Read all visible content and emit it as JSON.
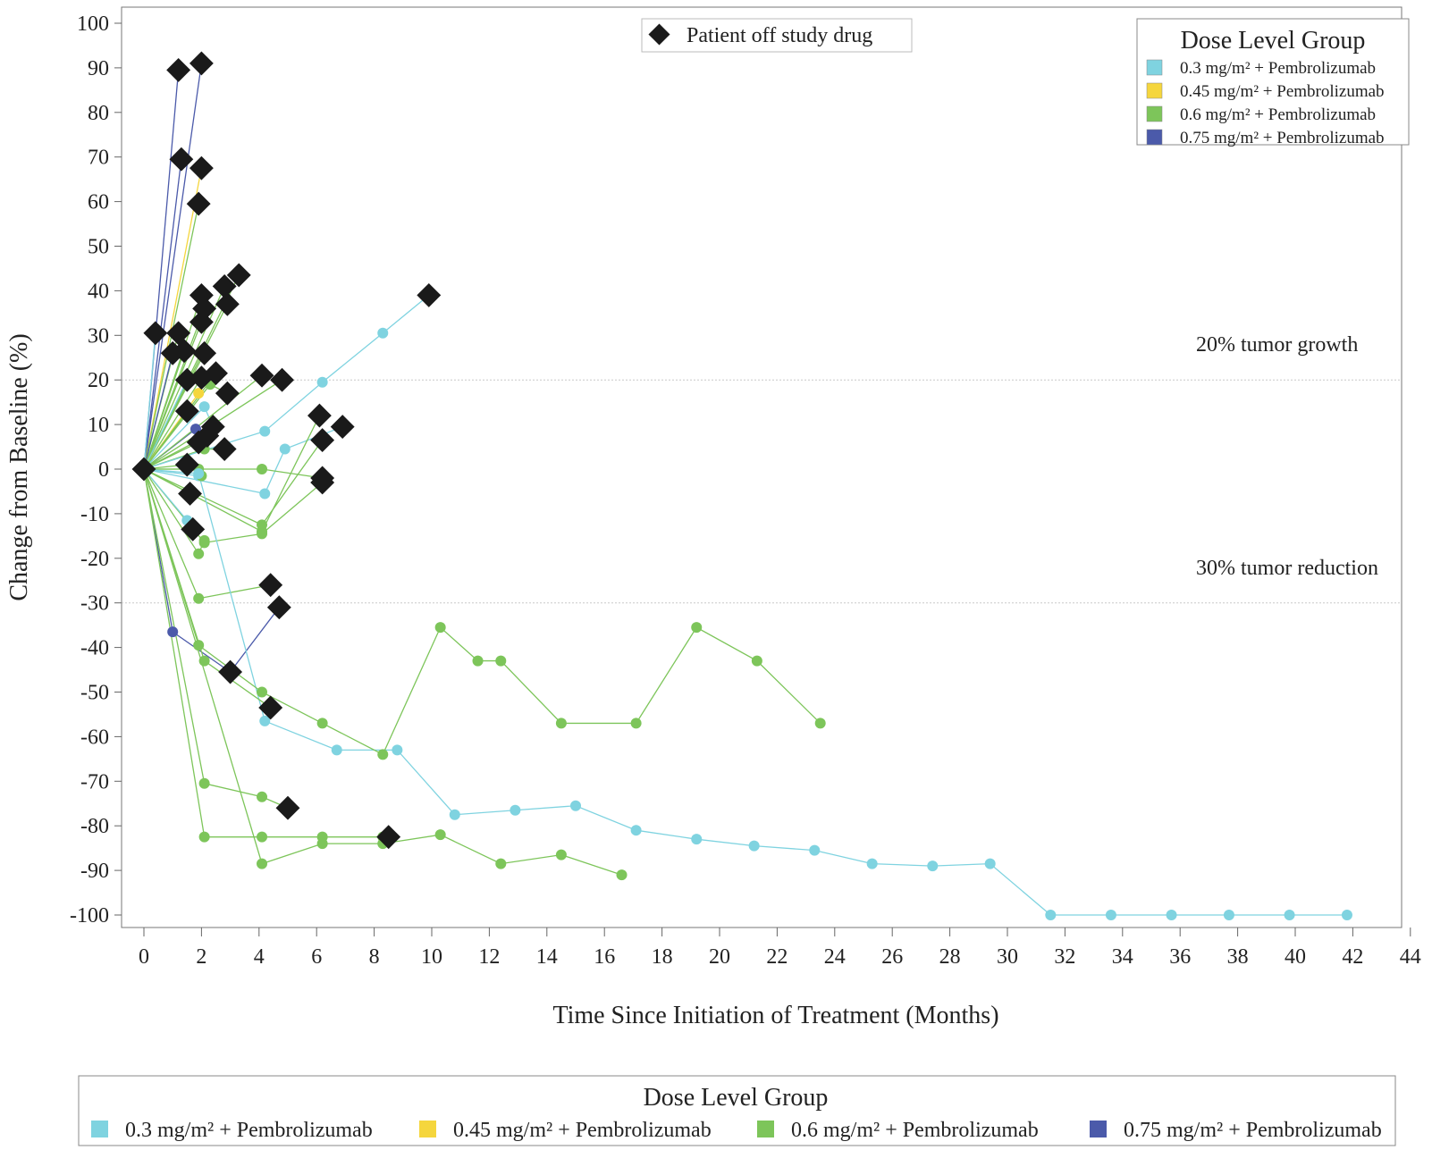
{
  "chart_data": {
    "type": "line",
    "ylabel": "Change from Baseline (%)",
    "xlabel": "Time Since Initiation of Treatment (Months)",
    "xlim": [
      0,
      44
    ],
    "ylim": [
      -100,
      100
    ],
    "x_ticks": [
      "0",
      "2",
      "4",
      "6",
      "8",
      "10",
      "12",
      "14",
      "16",
      "18",
      "20",
      "22",
      "24",
      "26",
      "28",
      "30",
      "32",
      "34",
      "36",
      "38",
      "40",
      "42",
      "44"
    ],
    "y_ticks": [
      "100",
      "90",
      "80",
      "70",
      "60",
      "50",
      "40",
      "30",
      "20",
      "10",
      "0",
      "-10",
      "-20",
      "-30",
      "-40",
      "-50",
      "-60",
      "-70",
      "-80",
      "-90",
      "-100"
    ],
    "reference_lines": [
      {
        "y": 20,
        "label": "20% tumor growth"
      },
      {
        "y": -30,
        "label": "30% tumor reduction"
      }
    ],
    "off_drug_legend": "Patient off study drug",
    "legend_title": "Dose Level Group",
    "groups": [
      {
        "name": "0.3 mg/m² + Pembrolizumab",
        "color": "#7fd3e0"
      },
      {
        "name": "0.45 mg/m² + Pembrolizumab",
        "color": "#f5d63d"
      },
      {
        "name": "0.6 mg/m² + Pembrolizumab",
        "color": "#7dc55a"
      },
      {
        "name": "0.75 mg/m² + Pembrolizumab",
        "color": "#4b5aaa"
      }
    ],
    "series": [
      {
        "group": 3,
        "points": [
          [
            0,
            0
          ],
          [
            1.3,
            69.5
          ]
        ],
        "off": [
          1
        ]
      },
      {
        "group": 3,
        "points": [
          [
            0,
            0
          ],
          [
            2,
            91
          ]
        ],
        "off": [
          1
        ]
      },
      {
        "group": 3,
        "points": [
          [
            0,
            0
          ],
          [
            1.2,
            89.5
          ]
        ],
        "off": [
          1
        ]
      },
      {
        "group": 1,
        "points": [
          [
            0,
            0
          ],
          [
            2,
            67.5
          ]
        ],
        "off": [
          1
        ]
      },
      {
        "group": 2,
        "points": [
          [
            0,
            0
          ],
          [
            1.9,
            59.5
          ]
        ],
        "off": [
          1
        ]
      },
      {
        "group": 2,
        "points": [
          [
            0,
            0
          ],
          [
            2,
            39
          ]
        ],
        "off": [
          1
        ]
      },
      {
        "group": 2,
        "points": [
          [
            0,
            0
          ],
          [
            2.1,
            36
          ]
        ],
        "off": [
          1
        ]
      },
      {
        "group": 2,
        "points": [
          [
            0,
            0
          ],
          [
            2,
            33
          ]
        ],
        "off": [
          1
        ]
      },
      {
        "group": 2,
        "points": [
          [
            0,
            0
          ],
          [
            2.8,
            41
          ]
        ],
        "off": [
          1
        ]
      },
      {
        "group": 2,
        "points": [
          [
            0,
            0
          ],
          [
            3.3,
            43.5
          ]
        ],
        "off": [
          1
        ]
      },
      {
        "group": 2,
        "points": [
          [
            0,
            0
          ],
          [
            2.9,
            37
          ]
        ],
        "off": [
          1
        ]
      },
      {
        "group": 0,
        "points": [
          [
            0,
            0
          ],
          [
            0.4,
            30.5
          ]
        ],
        "off": [
          1
        ]
      },
      {
        "group": 2,
        "points": [
          [
            0,
            0
          ],
          [
            1.2,
            30.5
          ]
        ],
        "off": [
          1
        ]
      },
      {
        "group": 3,
        "points": [
          [
            0,
            0
          ],
          [
            1,
            26
          ]
        ],
        "off": [
          1
        ]
      },
      {
        "group": 2,
        "points": [
          [
            0,
            0
          ],
          [
            1.4,
            26.5
          ]
        ],
        "off": [
          1
        ]
      },
      {
        "group": 2,
        "points": [
          [
            0,
            0
          ],
          [
            2.1,
            26
          ]
        ],
        "off": [
          1
        ]
      },
      {
        "group": 0,
        "points": [
          [
            0,
            0
          ],
          [
            1.5,
            20
          ]
        ],
        "off": [
          1
        ]
      },
      {
        "group": 2,
        "points": [
          [
            0,
            0
          ],
          [
            2,
            20.5
          ]
        ],
        "off": [
          1
        ]
      },
      {
        "group": 2,
        "points": [
          [
            0,
            0
          ],
          [
            2.5,
            21.5
          ]
        ],
        "off": [
          1
        ]
      },
      {
        "group": 2,
        "points": [
          [
            0,
            0
          ],
          [
            2.3,
            19
          ],
          [
            2.9,
            17
          ]
        ],
        "off": [
          2
        ]
      },
      {
        "group": 1,
        "points": [
          [
            0,
            0
          ],
          [
            1.9,
            17
          ]
        ],
        "off": []
      },
      {
        "group": 2,
        "points": [
          [
            0,
            0
          ],
          [
            1.5,
            13
          ]
        ],
        "off": [
          1
        ]
      },
      {
        "group": 0,
        "points": [
          [
            0,
            0
          ],
          [
            2.1,
            14
          ],
          [
            2.4,
            9.5
          ]
        ],
        "off": [
          2
        ]
      },
      {
        "group": 3,
        "points": [
          [
            0,
            0
          ],
          [
            1.8,
            9
          ]
        ],
        "off": []
      },
      {
        "group": 2,
        "points": [
          [
            0,
            0
          ],
          [
            1.9,
            6
          ]
        ],
        "off": [
          1
        ]
      },
      {
        "group": 2,
        "points": [
          [
            0,
            0
          ],
          [
            2.2,
            7.5
          ]
        ],
        "off": [
          1
        ]
      },
      {
        "group": 2,
        "points": [
          [
            0,
            0
          ],
          [
            2.1,
            4.5
          ],
          [
            2.8,
            4.5
          ]
        ],
        "off": [
          2
        ]
      },
      {
        "group": 0,
        "points": [
          [
            0,
            0
          ],
          [
            4.2,
            8.5
          ],
          [
            6.2,
            19.5
          ],
          [
            8.3,
            30.5
          ],
          [
            9.9,
            39
          ]
        ],
        "off": [
          4
        ]
      },
      {
        "group": 0,
        "points": [
          [
            0,
            0
          ],
          [
            4.2,
            -5.5
          ],
          [
            4.9,
            4.5
          ],
          [
            6.9,
            9.5
          ]
        ],
        "off": [
          3
        ]
      },
      {
        "group": 2,
        "points": [
          [
            0,
            0
          ],
          [
            4.1,
            21
          ]
        ],
        "off": [
          1
        ]
      },
      {
        "group": 2,
        "points": [
          [
            0,
            0
          ],
          [
            4.8,
            20
          ]
        ],
        "off": [
          1
        ]
      },
      {
        "group": 2,
        "points": [
          [
            0,
            0
          ],
          [
            4.1,
            -14
          ],
          [
            6.1,
            12
          ]
        ],
        "off": [
          2
        ]
      },
      {
        "group": 2,
        "points": [
          [
            0,
            0
          ],
          [
            4.1,
            -12.5
          ],
          [
            6.2,
            6.5
          ]
        ],
        "off": [
          2
        ]
      },
      {
        "group": 2,
        "points": [
          [
            0,
            0
          ],
          [
            4.1,
            0
          ],
          [
            6.2,
            -2
          ]
        ],
        "off": [
          2
        ]
      },
      {
        "group": 2,
        "points": [
          [
            0,
            0
          ],
          [
            2.1,
            -16.5
          ],
          [
            4.1,
            -14.5
          ],
          [
            6.2,
            -3
          ]
        ],
        "off": [
          3
        ]
      },
      {
        "group": 2,
        "points": [
          [
            0,
            0
          ],
          [
            1.5,
            1
          ]
        ],
        "off": [
          1
        ]
      },
      {
        "group": 0,
        "points": [
          [
            0,
            0
          ],
          [
            1.9,
            -1.5
          ]
        ],
        "off": []
      },
      {
        "group": 2,
        "points": [
          [
            0,
            0
          ],
          [
            1.9,
            0
          ],
          [
            2,
            -1.5
          ]
        ],
        "off": []
      },
      {
        "group": 2,
        "points": [
          [
            0,
            0
          ],
          [
            1.6,
            -5.5
          ]
        ],
        "off": [
          1
        ]
      },
      {
        "group": 0,
        "points": [
          [
            0,
            0
          ],
          [
            1.5,
            -11.5
          ],
          [
            1.7,
            -13.5
          ]
        ],
        "off": [
          2
        ]
      },
      {
        "group": 2,
        "points": [
          [
            0,
            0
          ],
          [
            1.9,
            -19
          ],
          [
            2.1,
            -16
          ]
        ],
        "off": []
      },
      {
        "group": 2,
        "points": [
          [
            0,
            0
          ],
          [
            1.9,
            -29
          ],
          [
            4.4,
            -26
          ]
        ],
        "off": [
          2
        ]
      },
      {
        "group": 3,
        "points": [
          [
            0,
            0
          ],
          [
            1,
            -36.5
          ],
          [
            3,
            -45.5
          ],
          [
            4.7,
            -31
          ]
        ],
        "off": [
          2,
          3
        ]
      },
      {
        "group": 0,
        "points": [
          [
            0,
            0
          ],
          [
            1.9,
            -1
          ],
          [
            4.2,
            -56.5
          ],
          [
            6.7,
            -63
          ],
          [
            8.8,
            -63
          ],
          [
            10.8,
            -77.5
          ],
          [
            12.9,
            -76.5
          ],
          [
            15,
            -75.5
          ],
          [
            17.1,
            -81
          ],
          [
            19.2,
            -83
          ],
          [
            21.2,
            -84.5
          ],
          [
            23.3,
            -85.5
          ],
          [
            25.3,
            -88.5
          ],
          [
            27.4,
            -89
          ],
          [
            29.4,
            -88.5
          ],
          [
            31.5,
            -100
          ],
          [
            33.6,
            -100
          ],
          [
            35.7,
            -100
          ],
          [
            37.7,
            -100
          ],
          [
            39.8,
            -100
          ],
          [
            41.8,
            -100
          ]
        ],
        "off": []
      },
      {
        "group": 2,
        "points": [
          [
            0,
            0
          ],
          [
            1.9,
            -39.5
          ],
          [
            4.1,
            -50
          ],
          [
            6.2,
            -57
          ],
          [
            8.3,
            -64
          ],
          [
            10.3,
            -35.5
          ],
          [
            11.6,
            -43
          ],
          [
            12.4,
            -43
          ],
          [
            14.5,
            -57
          ],
          [
            17.1,
            -57
          ],
          [
            19.2,
            -35.5
          ],
          [
            21.3,
            -43
          ],
          [
            23.5,
            -57
          ]
        ],
        "off": []
      },
      {
        "group": 2,
        "points": [
          [
            0,
            0
          ],
          [
            2.1,
            -43
          ],
          [
            4.4,
            -53.5
          ]
        ],
        "off": [
          2
        ]
      },
      {
        "group": 2,
        "points": [
          [
            0,
            0
          ],
          [
            2.1,
            -70.5
          ],
          [
            4.1,
            -73.5
          ],
          [
            5,
            -76
          ]
        ],
        "off": [
          3
        ]
      },
      {
        "group": 2,
        "points": [
          [
            0,
            0
          ],
          [
            2.1,
            -82.5
          ],
          [
            4.1,
            -82.5
          ],
          [
            6.2,
            -82.5
          ],
          [
            8.3,
            -82.5
          ],
          [
            8.5,
            -82.5
          ]
        ],
        "off": [
          5
        ]
      },
      {
        "group": 2,
        "points": [
          [
            0,
            0
          ],
          [
            4.1,
            -88.5
          ],
          [
            6.2,
            -84
          ],
          [
            8.3,
            -84
          ],
          [
            10.3,
            -82
          ],
          [
            12.4,
            -88.5
          ],
          [
            14.5,
            -86.5
          ],
          [
            16.6,
            -91
          ]
        ],
        "off": []
      }
    ]
  }
}
